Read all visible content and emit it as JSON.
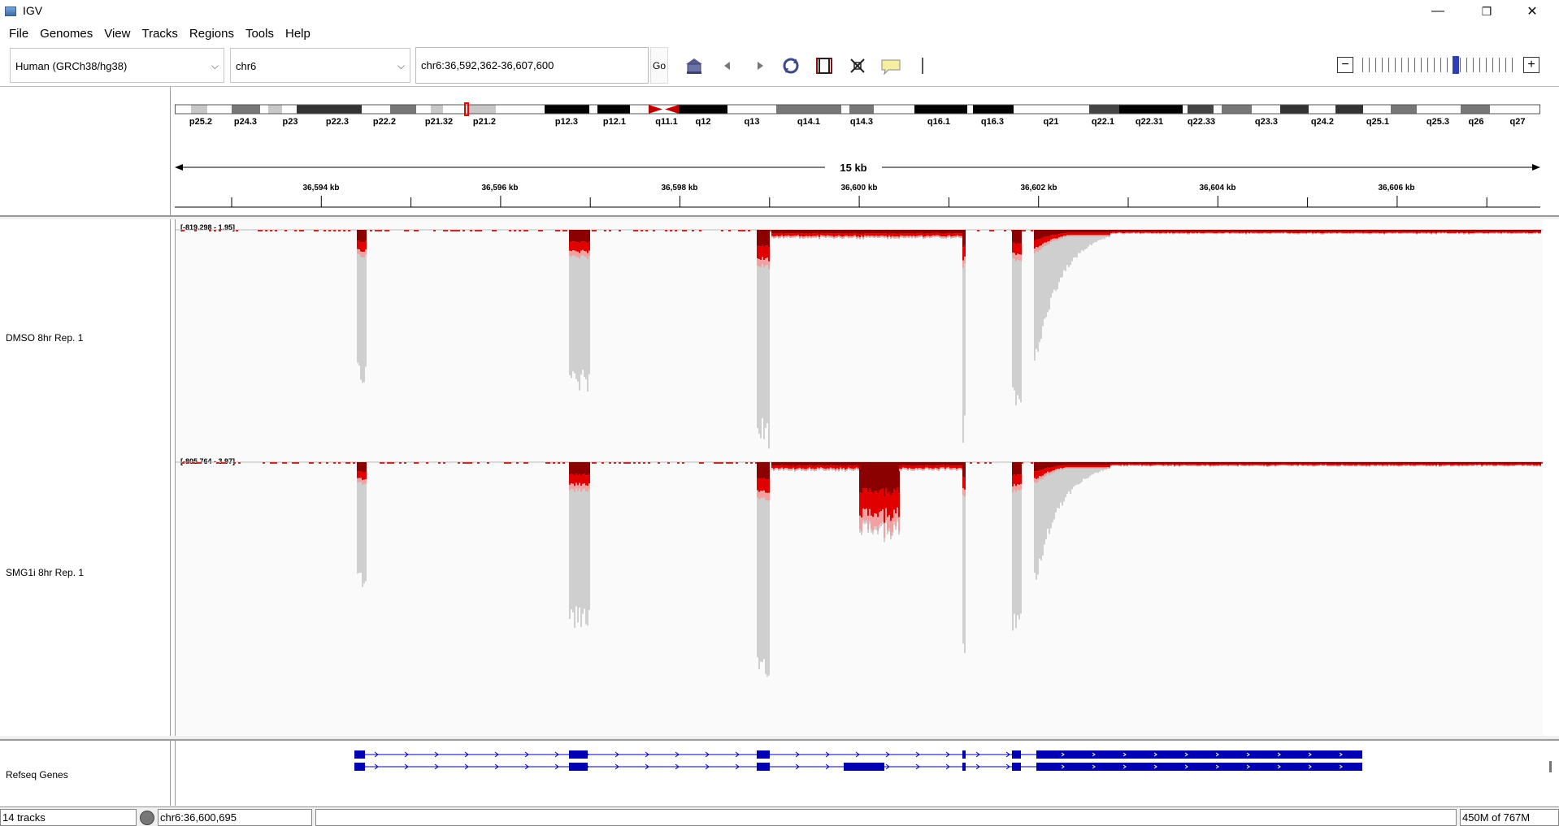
{
  "window": {
    "title": "IGV",
    "minimize": "—",
    "maximize": "❐",
    "close": "✕"
  },
  "menu": [
    "File",
    "Genomes",
    "View",
    "Tracks",
    "Regions",
    "Tools",
    "Help"
  ],
  "toolbar": {
    "genome": "Human (GRCh38/hg38)",
    "chromosome": "chr6",
    "locus": "chr6:36,592,362-36,607,600",
    "go_label": "Go",
    "icons": [
      "home-icon",
      "back-icon",
      "forward-icon",
      "refresh-icon",
      "roi-icon",
      "resize-icon",
      "popup-text-icon"
    ]
  },
  "ideogram": {
    "bands": [
      "p25.2",
      "p24.3",
      "p23",
      "p22.3",
      "p22.2",
      "p21.32",
      "p21.2",
      "p12.3",
      "p12.1",
      "q11.1",
      "q12",
      "q13",
      "q14.1",
      "q14.3",
      "q16.1",
      "q16.3",
      "q21",
      "q22.1",
      "q22.31",
      "q22.33",
      "q23.3",
      "q24.2",
      "q25.1",
      "q25.3",
      "q26",
      "q27"
    ]
  },
  "ruler": {
    "span_label": "15 kb",
    "ticks": [
      "36,594 kb",
      "36,596 kb",
      "36,598 kb",
      "36,600 kb",
      "36,602 kb",
      "36,604 kb",
      "36,606 kb"
    ]
  },
  "tracks": [
    {
      "name": "DMSO 8hr Rep. 1",
      "range": "[-819.298 - 1.95]"
    },
    {
      "name": "SMG1i 8hr Rep. 1",
      "range": "[-805.764 - 3.97]"
    }
  ],
  "gene_track": {
    "name": "Refseq Genes"
  },
  "status": {
    "tracks": "14 tracks",
    "position": "chr6:36,600,695",
    "memory": "450M of 767M"
  },
  "colors": {
    "gene": "#0000b2",
    "coverage_grey": "#c8c8c8",
    "coverage_red": "#e00000"
  }
}
